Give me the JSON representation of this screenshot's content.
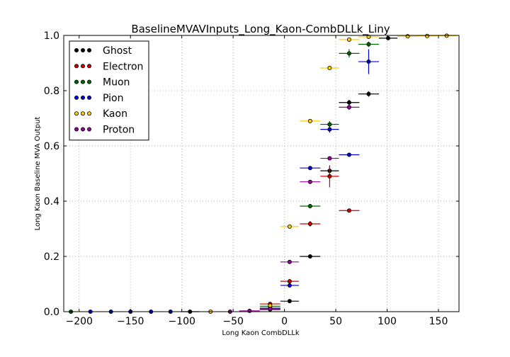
{
  "chart_data": {
    "type": "scatter",
    "title": "BaselineMVAVInputs_Long_Kaon-CombDLLk_Liny",
    "xlabel": "Long Kaon CombDLLk",
    "ylabel": "Long Kaon Baseline MVA Output",
    "xlim": [
      -215,
      170
    ],
    "ylim": [
      0.0,
      1.0
    ],
    "x_ticks": [
      -200,
      -150,
      -100,
      -50,
      0,
      50,
      100,
      150
    ],
    "x_tick_labels": [
      "−200",
      "−150",
      "−100",
      "−50",
      "0",
      "50",
      "100",
      "150"
    ],
    "y_ticks": [
      0.0,
      0.2,
      0.4,
      0.6,
      0.8,
      1.0
    ],
    "y_tick_labels": [
      "0.0",
      "0.2",
      "0.4",
      "0.6",
      "0.8",
      "1.0"
    ],
    "grid": true,
    "legend_position": "top-left",
    "series": [
      {
        "name": "Ghost",
        "color": "#000000",
        "points": [
          {
            "x": -14,
            "xerr": 10,
            "y": 0.008,
            "yerr": 0.003
          },
          {
            "x": 5,
            "xerr": 9,
            "y": 0.038,
            "yerr": 0.005
          },
          {
            "x": 25,
            "xerr": 10,
            "y": 0.2,
            "yerr": 0.006
          },
          {
            "x": 44,
            "xerr": 9,
            "y": 0.51,
            "yerr": 0.015
          },
          {
            "x": 63,
            "xerr": 10,
            "y": 0.757,
            "yerr": 0.01
          },
          {
            "x": 82,
            "xerr": 10,
            "y": 0.788,
            "yerr": 0.01
          },
          {
            "x": 101,
            "xerr": 9,
            "y": 0.99,
            "yerr": 0.004
          },
          {
            "x": -92,
            "xerr": 9,
            "y": 0.0,
            "yerr": 0.0
          }
        ]
      },
      {
        "name": "Electron",
        "color": "#cc0000",
        "points": [
          {
            "x": -14,
            "xerr": 10,
            "y": 0.028,
            "yerr": 0.006
          },
          {
            "x": 5,
            "xerr": 9,
            "y": 0.11,
            "yerr": 0.008
          },
          {
            "x": 25,
            "xerr": 10,
            "y": 0.318,
            "yerr": 0.01
          },
          {
            "x": 44,
            "xerr": 9,
            "y": 0.49,
            "yerr": 0.04
          },
          {
            "x": 63,
            "xerr": 10,
            "y": 0.366,
            "yerr": 0.006
          }
        ]
      },
      {
        "name": "Muon",
        "color": "#006600",
        "points": [
          {
            "x": -14,
            "xerr": 10,
            "y": 0.018,
            "yerr": 0.004
          },
          {
            "x": 25,
            "xerr": 10,
            "y": 0.382,
            "yerr": 0.008
          },
          {
            "x": 44,
            "xerr": 9,
            "y": 0.678,
            "yerr": 0.012
          },
          {
            "x": 63,
            "xerr": 10,
            "y": 0.935,
            "yerr": 0.015
          },
          {
            "x": 82,
            "xerr": 10,
            "y": 0.968,
            "yerr": 0.01
          },
          {
            "x": -208,
            "xerr": 0,
            "y": 0.0,
            "yerr": 0.0
          }
        ]
      },
      {
        "name": "Pion",
        "color": "#0000cc",
        "points": [
          {
            "x": -14,
            "xerr": 10,
            "y": 0.012,
            "yerr": 0.003
          },
          {
            "x": 5,
            "xerr": 9,
            "y": 0.095,
            "yerr": 0.006
          },
          {
            "x": 25,
            "xerr": 10,
            "y": 0.52,
            "yerr": 0.006
          },
          {
            "x": 44,
            "xerr": 9,
            "y": 0.66,
            "yerr": 0.012
          },
          {
            "x": 63,
            "xerr": 10,
            "y": 0.568,
            "yerr": 0.006
          },
          {
            "x": 82,
            "xerr": 10,
            "y": 0.905,
            "yerr": 0.045
          },
          {
            "x": -189,
            "xerr": 0,
            "y": 0.0,
            "yerr": 0.0
          },
          {
            "x": -169,
            "xerr": 0,
            "y": 0.0,
            "yerr": 0.0
          },
          {
            "x": -150,
            "xerr": 0,
            "y": 0.0,
            "yerr": 0.0
          },
          {
            "x": -130,
            "xerr": 0,
            "y": 0.0,
            "yerr": 0.0
          },
          {
            "x": -111,
            "xerr": 0,
            "y": 0.0,
            "yerr": 0.0
          }
        ]
      },
      {
        "name": "Kaon",
        "color": "#ffcc00",
        "points": [
          {
            "x": -14,
            "xerr": 10,
            "y": 0.022,
            "yerr": 0.003
          },
          {
            "x": 5,
            "xerr": 9,
            "y": 0.308,
            "yerr": 0.005
          },
          {
            "x": 25,
            "xerr": 10,
            "y": 0.69,
            "yerr": 0.005
          },
          {
            "x": 44,
            "xerr": 9,
            "y": 0.882,
            "yerr": 0.004
          },
          {
            "x": 63,
            "xerr": 10,
            "y": 0.985,
            "yerr": 0.003
          },
          {
            "x": 82,
            "xerr": 10,
            "y": 0.995,
            "yerr": 0.002
          },
          {
            "x": 120,
            "xerr": 10,
            "y": 0.997,
            "yerr": 0.002
          },
          {
            "x": 139,
            "xerr": 9,
            "y": 0.998,
            "yerr": 0.001
          },
          {
            "x": 158,
            "xerr": 10,
            "y": 0.999,
            "yerr": 0.001
          },
          {
            "x": -72,
            "xerr": 0,
            "y": 0.0,
            "yerr": 0.0
          }
        ]
      },
      {
        "name": "Proton",
        "color": "#990099",
        "points": [
          {
            "x": -34,
            "xerr": 10,
            "y": 0.003,
            "yerr": 0.002
          },
          {
            "x": -14,
            "xerr": 10,
            "y": 0.01,
            "yerr": 0.003
          },
          {
            "x": 5,
            "xerr": 9,
            "y": 0.18,
            "yerr": 0.006
          },
          {
            "x": 25,
            "xerr": 10,
            "y": 0.47,
            "yerr": 0.006
          },
          {
            "x": 44,
            "xerr": 9,
            "y": 0.555,
            "yerr": 0.006
          },
          {
            "x": 63,
            "xerr": 10,
            "y": 0.74,
            "yerr": 0.01
          },
          {
            "x": -53,
            "xerr": 0,
            "y": 0.0,
            "yerr": 0.0
          }
        ]
      }
    ]
  }
}
